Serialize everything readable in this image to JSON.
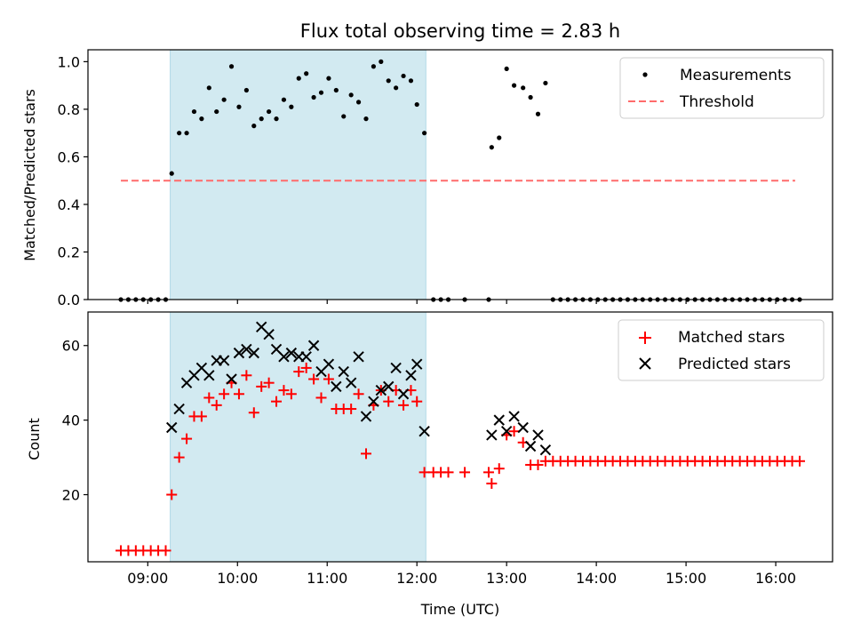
{
  "chart_data": [
    {
      "type": "scatter",
      "title": "Flux total observing time = 2.83 h",
      "xlabel": "",
      "ylabel": "Matched/Predicted stars",
      "xlim": [
        "08:20",
        "16:38"
      ],
      "ylim": [
        0,
        1.05
      ],
      "yticks": [
        "0.0",
        "0.2",
        "0.4",
        "0.6",
        "0.8",
        "1.0"
      ],
      "xticks": [
        "09:00",
        "10:00",
        "11:00",
        "12:00",
        "13:00",
        "14:00",
        "15:00",
        "16:00"
      ],
      "show_xtick_labels": false,
      "highlight_span": {
        "x_start": "09:15",
        "x_end": "12:06",
        "color": "#add8e6"
      },
      "legend": {
        "location": "top-right",
        "entries": [
          "Measurements",
          "Threshold"
        ]
      },
      "series": [
        {
          "name": "Measurements",
          "marker": "dot",
          "color": "#000000",
          "points": [
            [
              "08:42",
              0
            ],
            [
              "08:47",
              0
            ],
            [
              "08:52",
              0
            ],
            [
              "08:57",
              0
            ],
            [
              "09:02",
              0
            ],
            [
              "09:07",
              0
            ],
            [
              "09:12",
              0
            ],
            [
              "09:16",
              0.53
            ],
            [
              "09:21",
              0.7
            ],
            [
              "09:26",
              0.7
            ],
            [
              "09:31",
              0.79
            ],
            [
              "09:36",
              0.76
            ],
            [
              "09:41",
              0.89
            ],
            [
              "09:46",
              0.79
            ],
            [
              "09:51",
              0.84
            ],
            [
              "09:56",
              0.98
            ],
            [
              "10:01",
              0.81
            ],
            [
              "10:06",
              0.88
            ],
            [
              "10:11",
              0.73
            ],
            [
              "10:16",
              0.76
            ],
            [
              "10:21",
              0.79
            ],
            [
              "10:26",
              0.76
            ],
            [
              "10:31",
              0.84
            ],
            [
              "10:36",
              0.81
            ],
            [
              "10:41",
              0.93
            ],
            [
              "10:46",
              0.95
            ],
            [
              "10:51",
              0.85
            ],
            [
              "10:56",
              0.87
            ],
            [
              "11:01",
              0.93
            ],
            [
              "11:06",
              0.88
            ],
            [
              "11:11",
              0.77
            ],
            [
              "11:16",
              0.86
            ],
            [
              "11:21",
              0.83
            ],
            [
              "11:26",
              0.76
            ],
            [
              "11:31",
              0.98
            ],
            [
              "11:36",
              1.0
            ],
            [
              "11:41",
              0.92
            ],
            [
              "11:46",
              0.89
            ],
            [
              "11:51",
              0.94
            ],
            [
              "11:56",
              0.92
            ],
            [
              "12:00",
              0.82
            ],
            [
              "12:05",
              0.7
            ],
            [
              "12:11",
              0
            ],
            [
              "12:16",
              0
            ],
            [
              "12:21",
              0
            ],
            [
              "12:32",
              0
            ],
            [
              "12:48",
              0
            ],
            [
              "12:50",
              0.64
            ],
            [
              "12:55",
              0.68
            ],
            [
              "13:00",
              0.97
            ],
            [
              "13:05",
              0.9
            ],
            [
              "13:11",
              0.89
            ],
            [
              "13:16",
              0.85
            ],
            [
              "13:21",
              0.78
            ],
            [
              "13:26",
              0.91
            ],
            [
              "13:31",
              0
            ],
            [
              "13:36",
              0
            ],
            [
              "13:41",
              0
            ],
            [
              "13:46",
              0
            ],
            [
              "13:51",
              0
            ],
            [
              "13:56",
              0
            ],
            [
              "14:01",
              0
            ],
            [
              "14:06",
              0
            ],
            [
              "14:11",
              0
            ],
            [
              "14:16",
              0
            ],
            [
              "14:21",
              0
            ],
            [
              "14:26",
              0
            ],
            [
              "14:31",
              0
            ],
            [
              "14:36",
              0
            ],
            [
              "14:41",
              0
            ],
            [
              "14:46",
              0
            ],
            [
              "14:51",
              0
            ],
            [
              "14:56",
              0
            ],
            [
              "15:01",
              0
            ],
            [
              "15:06",
              0
            ],
            [
              "15:11",
              0
            ],
            [
              "15:16",
              0
            ],
            [
              "15:21",
              0
            ],
            [
              "15:26",
              0
            ],
            [
              "15:31",
              0
            ],
            [
              "15:36",
              0
            ],
            [
              "15:41",
              0
            ],
            [
              "15:46",
              0
            ],
            [
              "15:51",
              0
            ],
            [
              "15:56",
              0
            ],
            [
              "16:01",
              0
            ],
            [
              "16:06",
              0
            ],
            [
              "16:11",
              0
            ],
            [
              "16:16",
              0
            ]
          ]
        },
        {
          "name": "Threshold",
          "line_style": "dashed",
          "color": "#ff6b6b",
          "points": [
            [
              "08:42",
              0.5
            ],
            [
              "16:13",
              0.5
            ]
          ]
        }
      ]
    },
    {
      "type": "scatter",
      "title": "",
      "xlabel": "Time (UTC)",
      "ylabel": "Count",
      "xlim": [
        "08:20",
        "16:38"
      ],
      "ylim": [
        2,
        69
      ],
      "yticks": [
        "20",
        "40",
        "60"
      ],
      "xticks": [
        "09:00",
        "10:00",
        "11:00",
        "12:00",
        "13:00",
        "14:00",
        "15:00",
        "16:00"
      ],
      "highlight_span": {
        "x_start": "09:15",
        "x_end": "12:06",
        "color": "#add8e6"
      },
      "legend": {
        "location": "top-right",
        "entries": [
          "Matched stars",
          "Predicted stars"
        ]
      },
      "series": [
        {
          "name": "Matched stars",
          "marker": "plus",
          "color": "#ff0000",
          "points": [
            [
              "08:42",
              5
            ],
            [
              "08:47",
              5
            ],
            [
              "08:52",
              5
            ],
            [
              "08:57",
              5
            ],
            [
              "09:02",
              5
            ],
            [
              "09:07",
              5
            ],
            [
              "09:12",
              5
            ],
            [
              "09:16",
              20
            ],
            [
              "09:21",
              30
            ],
            [
              "09:26",
              35
            ],
            [
              "09:31",
              41
            ],
            [
              "09:36",
              41
            ],
            [
              "09:41",
              46
            ],
            [
              "09:46",
              44
            ],
            [
              "09:51",
              47
            ],
            [
              "09:56",
              50
            ],
            [
              "10:01",
              47
            ],
            [
              "10:06",
              52
            ],
            [
              "10:11",
              42
            ],
            [
              "10:16",
              49
            ],
            [
              "10:21",
              50
            ],
            [
              "10:26",
              45
            ],
            [
              "10:31",
              48
            ],
            [
              "10:36",
              47
            ],
            [
              "10:41",
              53
            ],
            [
              "10:46",
              54
            ],
            [
              "10:51",
              51
            ],
            [
              "10:56",
              46
            ],
            [
              "11:01",
              51
            ],
            [
              "11:06",
              43
            ],
            [
              "11:11",
              43
            ],
            [
              "11:16",
              43
            ],
            [
              "11:21",
              47
            ],
            [
              "11:26",
              31
            ],
            [
              "11:31",
              44
            ],
            [
              "11:36",
              48
            ],
            [
              "11:41",
              45
            ],
            [
              "11:46",
              48
            ],
            [
              "11:51",
              44
            ],
            [
              "11:56",
              48
            ],
            [
              "12:00",
              45
            ],
            [
              "12:05",
              26
            ],
            [
              "12:11",
              26
            ],
            [
              "12:16",
              26
            ],
            [
              "12:21",
              26
            ],
            [
              "12:32",
              26
            ],
            [
              "12:48",
              26
            ],
            [
              "12:50",
              23
            ],
            [
              "12:55",
              27
            ],
            [
              "13:00",
              36
            ],
            [
              "13:05",
              37
            ],
            [
              "13:11",
              34
            ],
            [
              "13:16",
              28
            ],
            [
              "13:21",
              28
            ],
            [
              "13:26",
              29
            ],
            [
              "13:31",
              29
            ],
            [
              "13:36",
              29
            ],
            [
              "13:41",
              29
            ],
            [
              "13:46",
              29
            ],
            [
              "13:51",
              29
            ],
            [
              "13:56",
              29
            ],
            [
              "14:01",
              29
            ],
            [
              "14:06",
              29
            ],
            [
              "14:11",
              29
            ],
            [
              "14:16",
              29
            ],
            [
              "14:21",
              29
            ],
            [
              "14:26",
              29
            ],
            [
              "14:31",
              29
            ],
            [
              "14:36",
              29
            ],
            [
              "14:41",
              29
            ],
            [
              "14:46",
              29
            ],
            [
              "14:51",
              29
            ],
            [
              "14:56",
              29
            ],
            [
              "15:01",
              29
            ],
            [
              "15:06",
              29
            ],
            [
              "15:11",
              29
            ],
            [
              "15:16",
              29
            ],
            [
              "15:21",
              29
            ],
            [
              "15:26",
              29
            ],
            [
              "15:31",
              29
            ],
            [
              "15:36",
              29
            ],
            [
              "15:41",
              29
            ],
            [
              "15:46",
              29
            ],
            [
              "15:51",
              29
            ],
            [
              "15:56",
              29
            ],
            [
              "16:01",
              29
            ],
            [
              "16:06",
              29
            ],
            [
              "16:11",
              29
            ],
            [
              "16:16",
              29
            ]
          ]
        },
        {
          "name": "Predicted stars",
          "marker": "x",
          "color": "#000000",
          "points": [
            [
              "09:16",
              38
            ],
            [
              "09:21",
              43
            ],
            [
              "09:26",
              50
            ],
            [
              "09:31",
              52
            ],
            [
              "09:36",
              54
            ],
            [
              "09:41",
              52
            ],
            [
              "09:46",
              56
            ],
            [
              "09:51",
              56
            ],
            [
              "09:56",
              51
            ],
            [
              "10:01",
              58
            ],
            [
              "10:06",
              59
            ],
            [
              "10:11",
              58
            ],
            [
              "10:16",
              65
            ],
            [
              "10:21",
              63
            ],
            [
              "10:26",
              59
            ],
            [
              "10:31",
              57
            ],
            [
              "10:36",
              58
            ],
            [
              "10:41",
              57
            ],
            [
              "10:46",
              57
            ],
            [
              "10:51",
              60
            ],
            [
              "10:56",
              53
            ],
            [
              "11:01",
              55
            ],
            [
              "11:06",
              49
            ],
            [
              "11:11",
              53
            ],
            [
              "11:16",
              50
            ],
            [
              "11:21",
              57
            ],
            [
              "11:26",
              41
            ],
            [
              "11:31",
              45
            ],
            [
              "11:36",
              48
            ],
            [
              "11:41",
              49
            ],
            [
              "11:46",
              54
            ],
            [
              "11:51",
              47
            ],
            [
              "11:56",
              52
            ],
            [
              "12:00",
              55
            ],
            [
              "12:05",
              37
            ],
            [
              "12:50",
              36
            ],
            [
              "12:55",
              40
            ],
            [
              "13:00",
              37
            ],
            [
              "13:05",
              41
            ],
            [
              "13:11",
              38
            ],
            [
              "13:16",
              33
            ],
            [
              "13:21",
              36
            ],
            [
              "13:26",
              32
            ]
          ]
        }
      ]
    }
  ]
}
